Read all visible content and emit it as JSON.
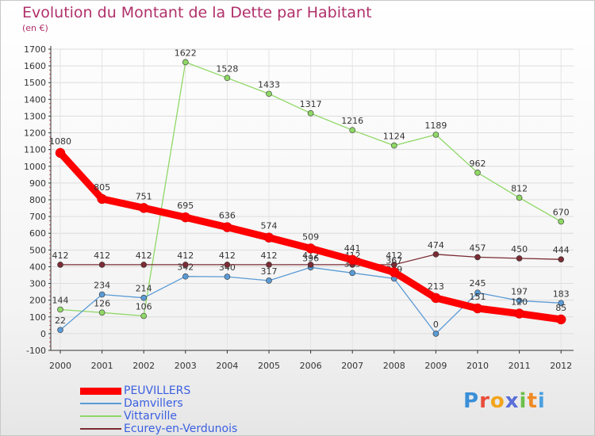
{
  "header": {
    "title": "Evolution du Montant de la Dette par Habitant",
    "subtitle": "(en €)"
  },
  "chart_data": {
    "type": "line",
    "title": "Evolution du Montant de la Dette par Habitant",
    "ylabel": "(en €)",
    "xlabel": "",
    "x": [
      "2000",
      "2001",
      "2002",
      "2003",
      "2004",
      "2005",
      "2006",
      "2007",
      "2008",
      "2009",
      "2010",
      "2011",
      "2012"
    ],
    "ylim": [
      -100,
      1700
    ],
    "yticks": [
      -100,
      0,
      100,
      200,
      300,
      400,
      500,
      600,
      700,
      800,
      900,
      1000,
      1100,
      1200,
      1300,
      1400,
      1500,
      1600,
      1700
    ],
    "grid": true,
    "legend_position": "bottom-left",
    "series": [
      {
        "name": "PEUVILLERS",
        "color": "#ff0000",
        "values": [
          1080,
          805,
          751,
          695,
          636,
          574,
          509,
          441,
          367,
          213,
          151,
          120,
          85
        ]
      },
      {
        "name": "Damvillers",
        "color": "#5b9bd5",
        "values": [
          22,
          234,
          214,
          342,
          340,
          317,
          396,
          363,
          329,
          0,
          245,
          197,
          183
        ]
      },
      {
        "name": "Vittarville",
        "color": "#8fd866",
        "values": [
          144,
          126,
          106,
          1622,
          1528,
          1433,
          1317,
          1216,
          1124,
          1189,
          962,
          812,
          670
        ]
      },
      {
        "name": "Ecurey-en-Verdunois",
        "color": "#7b2c34",
        "values": [
          412,
          412,
          412,
          412,
          412,
          412,
          412,
          412,
          412,
          474,
          457,
          450,
          444
        ]
      }
    ]
  },
  "logo": {
    "letters": [
      "P",
      "r",
      "o",
      "x",
      "i",
      "t",
      "i"
    ],
    "colors": [
      "#3a8fd8",
      "#e94d3a",
      "#f2a51c",
      "#5a6fd8",
      "#6cc04a",
      "#f08a24",
      "#4aa0e0"
    ]
  }
}
